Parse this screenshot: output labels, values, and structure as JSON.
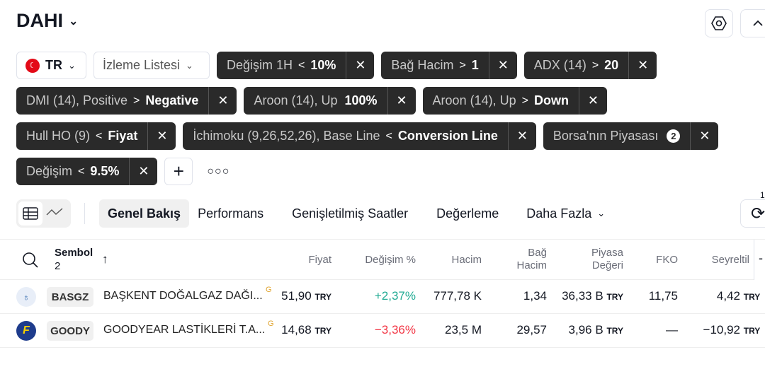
{
  "header": {
    "title": "DAHI"
  },
  "filters": {
    "market": "TR",
    "watchlist": "İzleme Listesi",
    "chips": [
      {
        "label": "Değişim 1H",
        "op": "<",
        "value": "10%"
      },
      {
        "label": "Bağ Hacim",
        "op": ">",
        "value": "1"
      },
      {
        "label": "ADX (14)",
        "op": ">",
        "value": "20"
      },
      {
        "label": "DMI (14), Positive",
        "op": ">",
        "value": "Negative"
      },
      {
        "label": "Aroon (14), Up",
        "op": "",
        "value": "100%"
      },
      {
        "label": "Aroon (14), Up",
        "op": ">",
        "value": "Down"
      },
      {
        "label": "Hull HO (9)",
        "op": "<",
        "value": "Fiyat"
      },
      {
        "label": "İchimoku (9,26,52,26), Base Line",
        "op": "<",
        "value": "Conversion Line"
      },
      {
        "label": "Borsa'nın Piyasası",
        "op": "",
        "value": "",
        "badge": "2"
      },
      {
        "label": "Değişim",
        "op": "<",
        "value": "9.5%"
      }
    ]
  },
  "tabs": [
    "Genel Bakış",
    "Performans",
    "Genişletilmiş Saatler",
    "Değerleme",
    "Daha Fazla"
  ],
  "refresh_badge": "1",
  "table": {
    "symbol_header": "Sembol",
    "symbol_count": "2",
    "headers": {
      "price": "Fiyat",
      "change": "Değişim %",
      "volume": "Hacim",
      "relvol1": "Bağ",
      "relvol2": "Hacim",
      "mcap1": "Piyasa",
      "mcap2": "Değeri",
      "pe": "FKO",
      "eps": "Seyreltil"
    },
    "rows": [
      {
        "ticker": "BASGZ",
        "name": "BAŞKENT DOĞALGAZ DAĞI...",
        "flag": "G",
        "price": "51,90",
        "cur": "TRY",
        "change": "+2,37%",
        "change_color": "#22ab94",
        "volume": "777,78 K",
        "relvol": "1,34",
        "mcap": "36,33 B",
        "pe": "11,75",
        "eps": "4,42"
      },
      {
        "ticker": "GOODY",
        "name": "GOODYEAR LASTİKLERİ T.A...",
        "flag": "G",
        "price": "14,68",
        "cur": "TRY",
        "change": "−3,36%",
        "change_color": "#f23645",
        "volume": "23,5 M",
        "relvol": "29,57",
        "mcap": "3,96 B",
        "pe": "—",
        "eps": "−10,92"
      }
    ]
  }
}
